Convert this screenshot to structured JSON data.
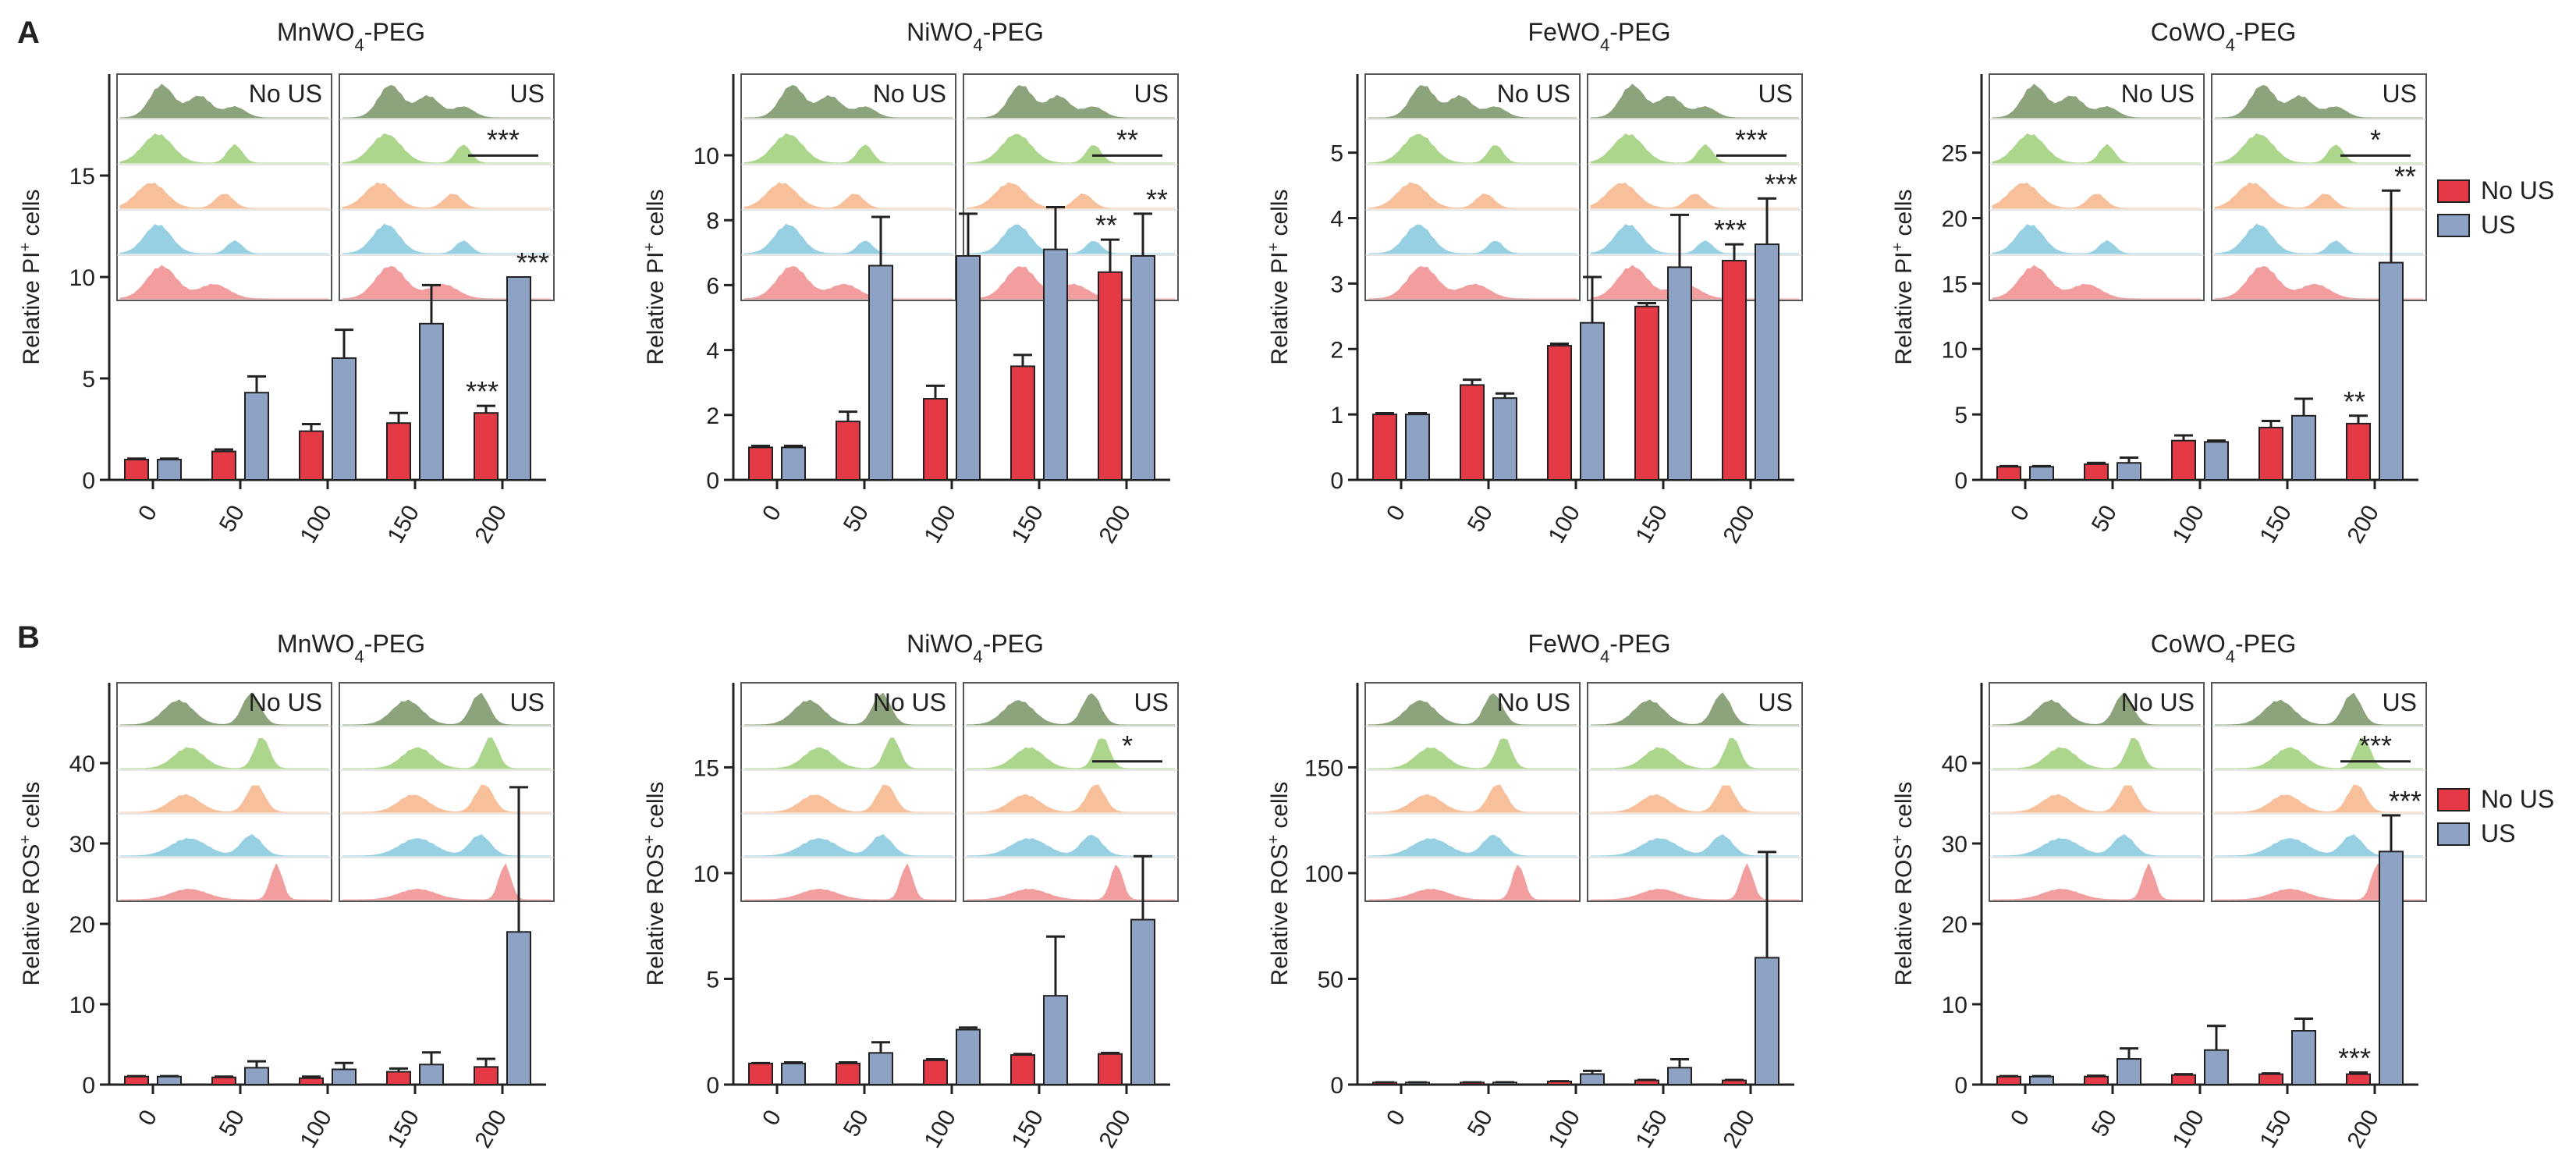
{
  "figure": {
    "row_labels": [
      "A",
      "B"
    ],
    "legend": [
      {
        "label": "No US",
        "color": "#e63946"
      },
      {
        "label": "US",
        "color": "#8da2c4"
      }
    ],
    "inset_labels": {
      "left": "No US",
      "right": "US"
    },
    "hist_colors": [
      "#7a9466",
      "#9fcf7a",
      "#f7b58a",
      "#86c8de",
      "#f08c8e"
    ]
  },
  "chart_data": [
    {
      "type": "bar",
      "row": "A",
      "title_parts": [
        "MnWO",
        "4",
        "-PEG"
      ],
      "ylabel_parts": [
        "Relative PI",
        "+",
        " cells"
      ],
      "categories": [
        "0",
        "50",
        "100",
        "150",
        "200"
      ],
      "ylim": [
        0,
        20
      ],
      "yticks": [
        0,
        5,
        10,
        15
      ],
      "series": [
        {
          "name": "No US",
          "values": [
            1.0,
            1.4,
            2.4,
            2.8,
            3.3
          ],
          "errors": [
            0.05,
            0.1,
            0.35,
            0.5,
            0.35
          ]
        },
        {
          "name": "US",
          "values": [
            1.0,
            4.3,
            6.0,
            7.7,
            10.0
          ],
          "errors": [
            0.05,
            0.8,
            1.4,
            1.9,
            0
          ]
        }
      ],
      "annotations": [
        {
          "text": "***",
          "series": 0,
          "cat": 4
        },
        {
          "text": "***",
          "series": 1,
          "cat": 4
        }
      ],
      "bracket": {
        "text": "***"
      }
    },
    {
      "type": "bar",
      "row": "A",
      "title_parts": [
        "NiWO",
        "4",
        "-PEG"
      ],
      "ylabel_parts": [
        "Relative PI",
        "+",
        " cells"
      ],
      "categories": [
        "0",
        "50",
        "100",
        "150",
        "200"
      ],
      "ylim": [
        0,
        12.5
      ],
      "yticks": [
        0,
        2,
        4,
        6,
        8,
        10
      ],
      "series": [
        {
          "name": "No US",
          "values": [
            1.0,
            1.8,
            2.5,
            3.5,
            6.4
          ],
          "errors": [
            0.05,
            0.3,
            0.4,
            0.35,
            1.0
          ]
        },
        {
          "name": "US",
          "values": [
            1.0,
            6.6,
            6.9,
            7.1,
            6.9
          ],
          "errors": [
            0.05,
            1.5,
            1.3,
            1.3,
            1.3
          ]
        }
      ],
      "annotations": [
        {
          "text": "**",
          "series": 0,
          "cat": 4
        },
        {
          "text": "**",
          "series": 1,
          "cat": 4
        }
      ],
      "bracket": {
        "text": "**"
      }
    },
    {
      "type": "bar",
      "row": "A",
      "title_parts": [
        "FeWO",
        "4",
        "-PEG"
      ],
      "ylabel_parts": [
        "Relative PI",
        "+",
        " cells"
      ],
      "categories": [
        "0",
        "50",
        "100",
        "150",
        "200"
      ],
      "ylim": [
        0,
        6.2
      ],
      "yticks": [
        0,
        1,
        2,
        3,
        4,
        5
      ],
      "series": [
        {
          "name": "No US",
          "values": [
            1.0,
            1.45,
            2.05,
            2.65,
            3.35
          ],
          "errors": [
            0.02,
            0.08,
            0.03,
            0.05,
            0.25
          ]
        },
        {
          "name": "US",
          "values": [
            1.0,
            1.25,
            2.4,
            3.25,
            3.6
          ],
          "errors": [
            0.02,
            0.07,
            0.7,
            0.8,
            0.7
          ]
        }
      ],
      "annotations": [
        {
          "text": "***",
          "series": 0,
          "cat": 4
        },
        {
          "text": "***",
          "series": 1,
          "cat": 4
        }
      ],
      "bracket": {
        "text": "***"
      }
    },
    {
      "type": "bar",
      "row": "A",
      "title_parts": [
        "CoWO",
        "4",
        "-PEG"
      ],
      "ylabel_parts": [
        "Relative PI",
        "+",
        " cells"
      ],
      "categories": [
        "0",
        "50",
        "100",
        "150",
        "200"
      ],
      "ylim": [
        0,
        31
      ],
      "yticks": [
        0,
        5,
        10,
        15,
        20,
        25
      ],
      "series": [
        {
          "name": "No US",
          "values": [
            1.0,
            1.2,
            3.0,
            4.0,
            4.3
          ],
          "errors": [
            0.05,
            0.1,
            0.4,
            0.5,
            0.6
          ]
        },
        {
          "name": "US",
          "values": [
            1.0,
            1.3,
            2.9,
            4.9,
            16.6
          ],
          "errors": [
            0.05,
            0.4,
            0.1,
            1.3,
            5.5
          ]
        }
      ],
      "annotations": [
        {
          "text": "**",
          "series": 0,
          "cat": 4
        },
        {
          "text": "**",
          "series": 1,
          "cat": 4
        }
      ],
      "bracket": {
        "text": "*"
      }
    },
    {
      "type": "bar",
      "row": "B",
      "title_parts": [
        "MnWO",
        "4",
        "-PEG"
      ],
      "ylabel_parts": [
        "Relative ROS",
        "+",
        " cells"
      ],
      "categories": [
        "0",
        "50",
        "100",
        "150",
        "200"
      ],
      "ylim": [
        0,
        50
      ],
      "yticks": [
        0,
        10,
        20,
        30,
        40
      ],
      "series": [
        {
          "name": "No US",
          "values": [
            1.0,
            0.9,
            0.8,
            1.6,
            2.2
          ],
          "errors": [
            0.05,
            0.1,
            0.2,
            0.4,
            1.0
          ]
        },
        {
          "name": "US",
          "values": [
            1.0,
            2.1,
            1.9,
            2.5,
            19.0
          ],
          "errors": [
            0.05,
            0.8,
            0.8,
            1.5,
            18.0
          ]
        }
      ],
      "annotations": [],
      "bracket": null
    },
    {
      "type": "bar",
      "row": "B",
      "title_parts": [
        "NiWO",
        "4",
        "-PEG"
      ],
      "ylabel_parts": [
        "Relative ROS",
        "+",
        " cells"
      ],
      "categories": [
        "0",
        "50",
        "100",
        "150",
        "200"
      ],
      "ylim": [
        0,
        19
      ],
      "yticks": [
        0,
        5,
        10,
        15
      ],
      "series": [
        {
          "name": "No US",
          "values": [
            1.0,
            1.0,
            1.15,
            1.4,
            1.45
          ],
          "errors": [
            0.02,
            0.05,
            0.05,
            0.05,
            0.05
          ]
        },
        {
          "name": "US",
          "values": [
            1.0,
            1.5,
            2.6,
            4.2,
            7.8
          ],
          "errors": [
            0.05,
            0.5,
            0.1,
            2.8,
            3.0
          ]
        }
      ],
      "annotations": [],
      "bracket": {
        "text": "*"
      }
    },
    {
      "type": "bar",
      "row": "B",
      "title_parts": [
        "FeWO",
        "4",
        "-PEG"
      ],
      "ylabel_parts": [
        "Relative ROS",
        "+",
        " cells"
      ],
      "categories": [
        "0",
        "50",
        "100",
        "150",
        "200"
      ],
      "ylim": [
        0,
        190
      ],
      "yticks": [
        0,
        50,
        100,
        150
      ],
      "series": [
        {
          "name": "No US",
          "values": [
            1.0,
            1.0,
            1.5,
            2.0,
            2.0
          ],
          "errors": [
            0.05,
            0.05,
            0.1,
            0.2,
            0.2
          ]
        },
        {
          "name": "US",
          "values": [
            1.0,
            1.0,
            5.0,
            8.0,
            60.0
          ],
          "errors": [
            0.05,
            0.1,
            1.5,
            4.0,
            50.0
          ]
        }
      ],
      "annotations": [],
      "bracket": null
    },
    {
      "type": "bar",
      "row": "B",
      "title_parts": [
        "CoWO",
        "4",
        "-PEG"
      ],
      "ylabel_parts": [
        "Relative ROS",
        "+",
        " cells"
      ],
      "categories": [
        "0",
        "50",
        "100",
        "150",
        "200"
      ],
      "ylim": [
        0,
        50
      ],
      "yticks": [
        0,
        10,
        20,
        30,
        40
      ],
      "series": [
        {
          "name": "No US",
          "values": [
            1.0,
            1.0,
            1.2,
            1.3,
            1.3
          ],
          "errors": [
            0.05,
            0.1,
            0.1,
            0.1,
            0.2
          ]
        },
        {
          "name": "US",
          "values": [
            1.0,
            3.2,
            4.3,
            6.7,
            29.0
          ],
          "errors": [
            0.05,
            1.3,
            3.0,
            1.5,
            4.5
          ]
        }
      ],
      "annotations": [
        {
          "text": "***",
          "series": 0,
          "cat": 4
        },
        {
          "text": "***",
          "series": 1,
          "cat": 4
        }
      ],
      "bracket": {
        "text": "***"
      }
    }
  ]
}
